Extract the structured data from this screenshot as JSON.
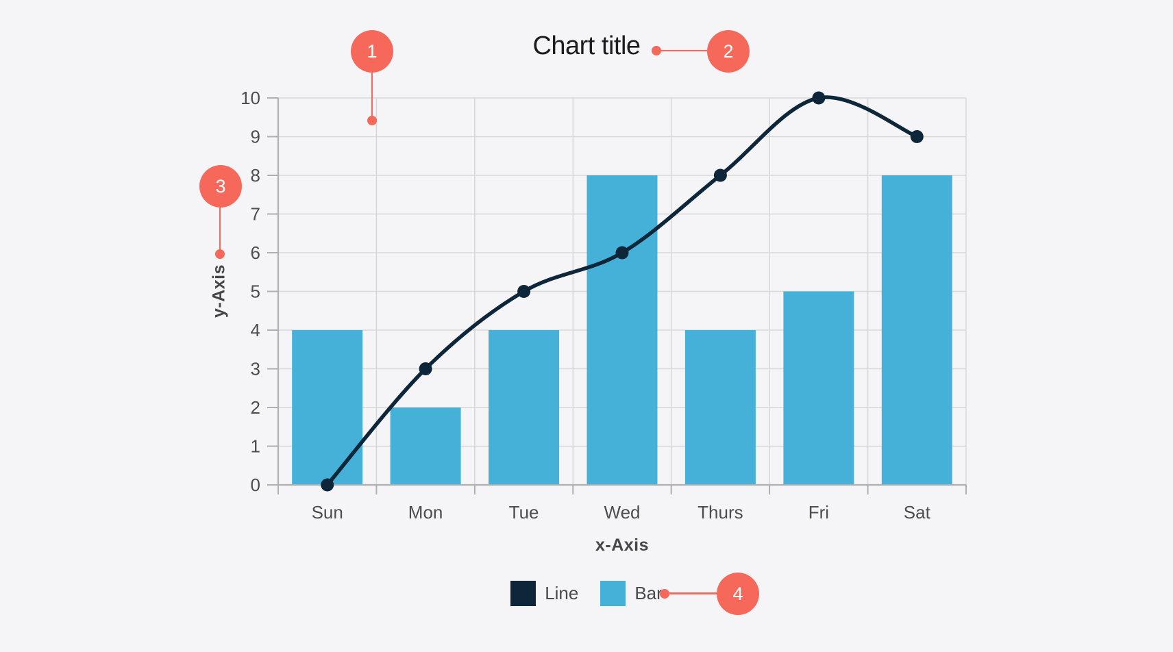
{
  "page": {
    "background_color": "#f5f4f6"
  },
  "title": "Chart title",
  "chart_data": {
    "type": "bar+line",
    "title": "Chart title",
    "xlabel": "x-Axis",
    "ylabel": "y-Axis",
    "categories": [
      "Sun",
      "Mon",
      "Tue",
      "Wed",
      "Thurs",
      "Fri",
      "Sat"
    ],
    "series": [
      {
        "name": "Line",
        "type": "line",
        "color": "#0d2639",
        "values": [
          0,
          3,
          5,
          6,
          8,
          10,
          9
        ]
      },
      {
        "name": "Bar",
        "type": "bar",
        "color": "#45b1d8",
        "values": [
          4,
          2,
          4,
          8,
          4,
          5,
          8
        ]
      }
    ],
    "ylim": [
      0,
      10
    ],
    "yticks": [
      0,
      1,
      2,
      3,
      4,
      5,
      6,
      7,
      8,
      9,
      10
    ],
    "grid": true,
    "legend_position": "bottom"
  },
  "axes": {
    "x_title": "x-Axis",
    "y_title": "y-Axis"
  },
  "legend": {
    "items": [
      {
        "label": "Line",
        "color": "#0d2639"
      },
      {
        "label": "Bar",
        "color": "#45b1d8"
      }
    ]
  },
  "annotations": {
    "color": "#f6695a",
    "badges": [
      {
        "number": "1",
        "target": "plot-area"
      },
      {
        "number": "2",
        "target": "chart-title"
      },
      {
        "number": "3",
        "target": "y-axis-title"
      },
      {
        "number": "4",
        "target": "legend"
      }
    ]
  },
  "colors": {
    "grid": "#d8d8d8",
    "axis": "#b0b0b0",
    "tick_label": "#4d4d4d",
    "axis_title": "#464646",
    "title_text": "#1c1c1c",
    "bar": "#45b1d8",
    "line": "#0d2639",
    "accent": "#f6695a"
  }
}
